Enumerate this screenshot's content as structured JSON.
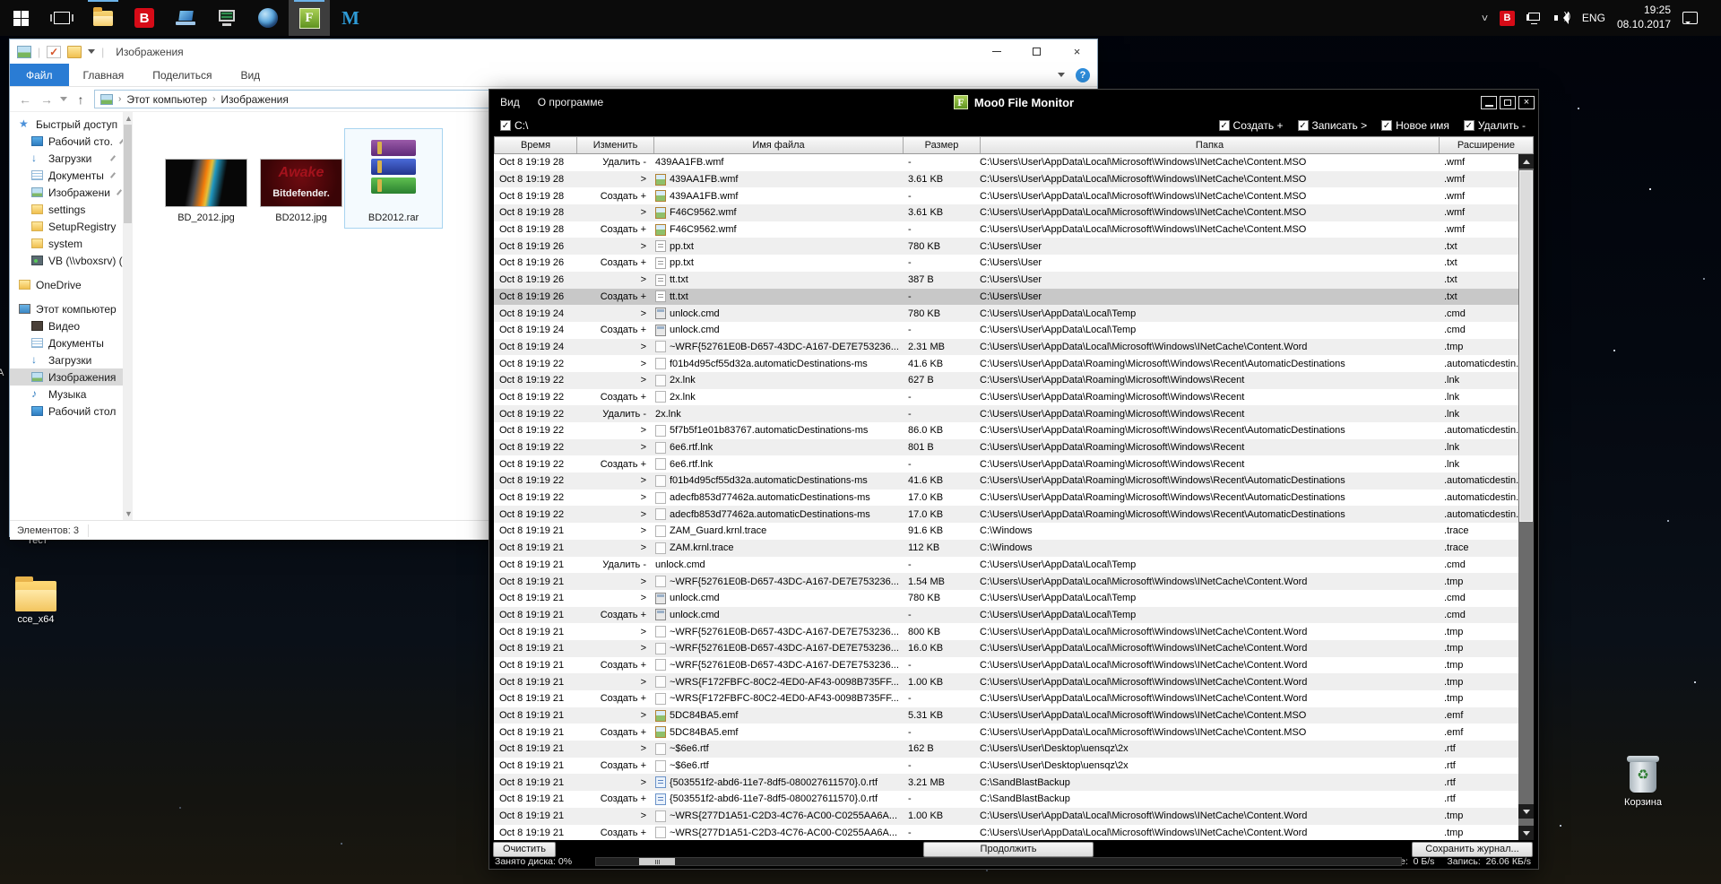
{
  "taskbar": {
    "lang": "ENG",
    "time": "19:25",
    "date": "08.10.2017",
    "icons": [
      "start",
      "task-view",
      "file-explorer",
      "bitdefender",
      "remote-pc",
      "system-monitor",
      "browser-globe",
      "moo0-file-monitor",
      "malwarebytes"
    ],
    "tray_icons": [
      "hidden-icons-chevron",
      "bitdefender-tray",
      "network",
      "volume",
      "language",
      "clock",
      "notifications"
    ]
  },
  "desktop": {
    "test_label": "Тест",
    "partial_label": "А",
    "cce_folder_label": "cce_x64",
    "recycle_label": "Корзина"
  },
  "explorer": {
    "title": "Изображения",
    "qat_icons": [
      "window-icon",
      "checkmark-icon",
      "folder-icon",
      "dropdown-caret"
    ],
    "tabs": [
      "Файл",
      "Главная",
      "Поделиться",
      "Вид"
    ],
    "address": {
      "crumb1": "Этот компьютер",
      "crumb2": "Изображения"
    },
    "sidebar": [
      {
        "label": "Быстрый доступ",
        "icon": "star",
        "lvl": 0
      },
      {
        "label": "Рабочий сто.",
        "icon": "desk",
        "lvl": 1,
        "pin": true
      },
      {
        "label": "Загрузки",
        "icon": "down",
        "lvl": 1,
        "pin": true
      },
      {
        "label": "Документы",
        "icon": "docs",
        "lvl": 1,
        "pin": true
      },
      {
        "label": "Изображени",
        "icon": "pics",
        "lvl": 1,
        "pin": true
      },
      {
        "label": "settings",
        "icon": "fold",
        "lvl": 1
      },
      {
        "label": "SetupRegistry",
        "icon": "fold",
        "lvl": 1
      },
      {
        "label": "system",
        "icon": "fold",
        "lvl": 1
      },
      {
        "label": "VB (\\\\vboxsrv) (Е",
        "icon": "net",
        "lvl": 1
      },
      {
        "label": "OneDrive",
        "icon": "fold",
        "lvl": 0,
        "sect": true
      },
      {
        "label": "Этот компьютер",
        "icon": "pc",
        "lvl": 0,
        "sect": true
      },
      {
        "label": "Видео",
        "icon": "video",
        "lvl": 1
      },
      {
        "label": "Документы",
        "icon": "docs",
        "lvl": 1
      },
      {
        "label": "Загрузки",
        "icon": "down",
        "lvl": 1
      },
      {
        "label": "Изображения",
        "icon": "pics",
        "lvl": 1,
        "sel": true
      },
      {
        "label": "Музыка",
        "icon": "music",
        "lvl": 1
      },
      {
        "label": "Рабочий стол",
        "icon": "desk",
        "lvl": 1
      }
    ],
    "files": [
      {
        "name": "BD_2012.jpg",
        "kind": "image"
      },
      {
        "name": "BD2012.jpg",
        "kind": "image",
        "overlay_text1": "Awake",
        "overlay_text2": "Bitdefender."
      },
      {
        "name": "BD2012.rar",
        "kind": "archive",
        "selected": true
      }
    ],
    "status": "Элементов: 3"
  },
  "monitor": {
    "title": "Moo0 File Monitor",
    "menu": [
      "Вид",
      "О программе"
    ],
    "drive_filter": "С:\\",
    "filters": [
      "Создать +",
      "Записать >",
      "Новое имя",
      "Удалить -"
    ],
    "columns": [
      "Время",
      "Изменить",
      "Имя файла",
      "Размер",
      "Папка",
      "Расширение"
    ],
    "selected_row": 8,
    "folders": {
      "MSO": "C:\\Users\\User\\AppData\\Local\\Microsoft\\Windows\\INetCache\\Content.MSO",
      "WRD": "C:\\Users\\User\\AppData\\Local\\Microsoft\\Windows\\INetCache\\Content.Word",
      "USR": "C:\\Users\\User",
      "TMP": "C:\\Users\\User\\AppData\\Local\\Temp",
      "REC": "C:\\Users\\User\\AppData\\Roaming\\Microsoft\\Windows\\Recent",
      "AD": "C:\\Users\\User\\AppData\\Roaming\\Microsoft\\Windows\\Recent\\AutomaticDestinations",
      "WIN": "C:\\Windows",
      "DSK": "C:\\Users\\User\\Desktop\\uensqz\\2x",
      "SBB": "C:\\SandBlastBackup"
    },
    "rows": [
      [
        "Oct 8  19:19 28",
        "Удалить -",
        "none",
        "439AA1FB.wmf",
        "-",
        "MSO",
        ".wmf"
      ],
      [
        "Oct 8  19:19 28",
        ">",
        "wmf",
        "439AA1FB.wmf",
        "3.61 KB",
        "MSO",
        ".wmf"
      ],
      [
        "Oct 8  19:19 28",
        "Создать +",
        "wmf",
        "439AA1FB.wmf",
        "-",
        "MSO",
        ".wmf"
      ],
      [
        "Oct 8  19:19 28",
        ">",
        "wmf",
        "F46C9562.wmf",
        "3.61 KB",
        "MSO",
        ".wmf"
      ],
      [
        "Oct 8  19:19 28",
        "Создать +",
        "wmf",
        "F46C9562.wmf",
        "-",
        "MSO",
        ".wmf"
      ],
      [
        "Oct 8  19:19 26",
        ">",
        "txt",
        "pp.txt",
        "780 KB",
        "USR",
        ".txt"
      ],
      [
        "Oct 8  19:19 26",
        "Создать +",
        "txt",
        "pp.txt",
        "-",
        "USR",
        ".txt"
      ],
      [
        "Oct 8  19:19 26",
        ">",
        "txt",
        "tt.txt",
        "387 B",
        "USR",
        ".txt"
      ],
      [
        "Oct 8  19:19 26",
        "Создать +",
        "txt",
        "tt.txt",
        "-",
        "USR",
        ".txt"
      ],
      [
        "Oct 8  19:19 24",
        ">",
        "cmd",
        "unlock.cmd",
        "780 KB",
        "TMP",
        ".cmd"
      ],
      [
        "Oct 8  19:19 24",
        "Создать +",
        "cmd",
        "unlock.cmd",
        "-",
        "TMP",
        ".cmd"
      ],
      [
        "Oct 8  19:19 24",
        ">",
        "doc",
        "~WRF{52761E0B-D657-43DC-A167-DE7E753236...",
        "2.31 MB",
        "WRD",
        ".tmp"
      ],
      [
        "Oct 8  19:19 22",
        ">",
        "doc",
        "f01b4d95cf55d32a.automaticDestinations-ms",
        "41.6 KB",
        "AD",
        ".automaticdestin..."
      ],
      [
        "Oct 8  19:19 22",
        ">",
        "doc",
        "2x.lnk",
        "627 B",
        "REC",
        ".lnk"
      ],
      [
        "Oct 8  19:19 22",
        "Создать +",
        "doc",
        "2x.lnk",
        "-",
        "REC",
        ".lnk"
      ],
      [
        "Oct 8  19:19 22",
        "Удалить -",
        "none",
        "2x.lnk",
        "-",
        "REC",
        ".lnk"
      ],
      [
        "Oct 8  19:19 22",
        ">",
        "doc",
        "5f7b5f1e01b83767.automaticDestinations-ms",
        "86.0 KB",
        "AD",
        ".automaticdestin..."
      ],
      [
        "Oct 8  19:19 22",
        ">",
        "doc",
        "6e6.rtf.lnk",
        "801 B",
        "REC",
        ".lnk"
      ],
      [
        "Oct 8  19:19 22",
        "Создать +",
        "doc",
        "6e6.rtf.lnk",
        "-",
        "REC",
        ".lnk"
      ],
      [
        "Oct 8  19:19 22",
        ">",
        "doc",
        "f01b4d95cf55d32a.automaticDestinations-ms",
        "41.6 KB",
        "AD",
        ".automaticdestin..."
      ],
      [
        "Oct 8  19:19 22",
        ">",
        "doc",
        "adecfb853d77462a.automaticDestinations-ms",
        "17.0 KB",
        "AD",
        ".automaticdestin..."
      ],
      [
        "Oct 8  19:19 22",
        ">",
        "doc",
        "adecfb853d77462a.automaticDestinations-ms",
        "17.0 KB",
        "AD",
        ".automaticdestin..."
      ],
      [
        "Oct 8  19:19 21",
        ">",
        "doc",
        "ZAM_Guard.krnl.trace",
        "91.6 KB",
        "WIN",
        ".trace"
      ],
      [
        "Oct 8  19:19 21",
        ">",
        "doc",
        "ZAM.krnl.trace",
        "112 KB",
        "WIN",
        ".trace"
      ],
      [
        "Oct 8  19:19 21",
        "Удалить -",
        "none",
        "unlock.cmd",
        "-",
        "TMP",
        ".cmd"
      ],
      [
        "Oct 8  19:19 21",
        ">",
        "doc",
        "~WRF{52761E0B-D657-43DC-A167-DE7E753236...",
        "1.54 MB",
        "WRD",
        ".tmp"
      ],
      [
        "Oct 8  19:19 21",
        ">",
        "cmd",
        "unlock.cmd",
        "780 KB",
        "TMP",
        ".cmd"
      ],
      [
        "Oct 8  19:19 21",
        "Создать +",
        "cmd",
        "unlock.cmd",
        "-",
        "TMP",
        ".cmd"
      ],
      [
        "Oct 8  19:19 21",
        ">",
        "doc",
        "~WRF{52761E0B-D657-43DC-A167-DE7E753236...",
        "800 KB",
        "WRD",
        ".tmp"
      ],
      [
        "Oct 8  19:19 21",
        ">",
        "doc",
        "~WRF{52761E0B-D657-43DC-A167-DE7E753236...",
        "16.0 KB",
        "WRD",
        ".tmp"
      ],
      [
        "Oct 8  19:19 21",
        "Создать +",
        "doc",
        "~WRF{52761E0B-D657-43DC-A167-DE7E753236...",
        "-",
        "WRD",
        ".tmp"
      ],
      [
        "Oct 8  19:19 21",
        ">",
        "doc",
        "~WRS{F172FBFC-80C2-4ED0-AF43-0098B735FF...",
        "1.00 KB",
        "WRD",
        ".tmp"
      ],
      [
        "Oct 8  19:19 21",
        "Создать +",
        "doc",
        "~WRS{F172FBFC-80C2-4ED0-AF43-0098B735FF...",
        "-",
        "WRD",
        ".tmp"
      ],
      [
        "Oct 8  19:19 21",
        ">",
        "wmf",
        "5DC84BA5.emf",
        "5.31 KB",
        "MSO",
        ".emf"
      ],
      [
        "Oct 8  19:19 21",
        "Создать +",
        "wmf",
        "5DC84BA5.emf",
        "-",
        "MSO",
        ".emf"
      ],
      [
        "Oct 8  19:19 21",
        ">",
        "doc",
        "~$6e6.rtf",
        "162 B",
        "DSK",
        ".rtf"
      ],
      [
        "Oct 8  19:19 21",
        "Создать +",
        "doc",
        "~$6e6.rtf",
        "-",
        "DSK",
        ".rtf"
      ],
      [
        "Oct 8  19:19 21",
        ">",
        "rtf",
        "{503551f2-abd6-11e7-8df5-080027611570}.0.rtf",
        "3.21 MB",
        "SBB",
        ".rtf"
      ],
      [
        "Oct 8  19:19 21",
        "Создать +",
        "rtf",
        "{503551f2-abd6-11e7-8df5-080027611570}.0.rtf",
        "-",
        "SBB",
        ".rtf"
      ],
      [
        "Oct 8  19:19 21",
        ">",
        "doc",
        "~WRS{277D1A51-C2D3-4C76-AC00-C0255AA6A...",
        "1.00 KB",
        "WRD",
        ".tmp"
      ],
      [
        "Oct 8  19:19 21",
        "Создать +",
        "doc",
        "~WRS{277D1A51-C2D3-4C76-AC00-C0255AA6A...",
        "-",
        "WRD",
        ".tmp"
      ]
    ],
    "footer": {
      "clear": "Очистить",
      "resume": "Продолжить",
      "save": "Сохранить журнал...",
      "disk_label": "Занято диска:",
      "disk_value": "0%",
      "read_label": "Чтение:",
      "read_value": "0 Б/s",
      "write_label": "Запись:",
      "write_value": "26.06 КБ/s"
    }
  }
}
